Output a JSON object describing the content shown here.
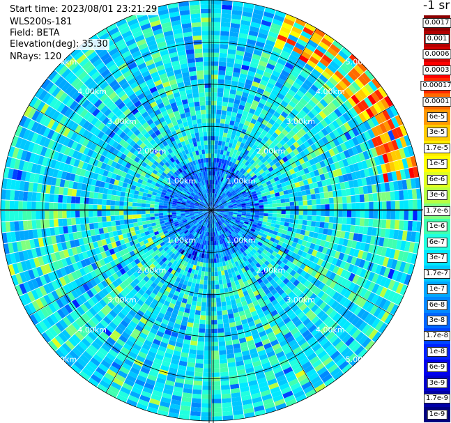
{
  "header": {
    "start_time": "Start time: 2023/08/01 23:21:29",
    "instrument": "WLS200s-181",
    "field": "Field: BETA",
    "elevation": "Elevation(deg): 35.30",
    "nrays": "NRays: 120"
  },
  "colorbar": {
    "title": "-1 sr",
    "labels": [
      "0.0017",
      "0.001",
      "0.0006",
      "0.0003",
      "0.00017",
      "0.0001",
      "6e-5",
      "3e-5",
      "1.7e-5",
      "1e-5",
      "6e-6",
      "3e-6",
      "1.7e-6",
      "1e-6",
      "6e-7",
      "3e-7",
      "1.7e-7",
      "1e-7",
      "6e-8",
      "3e-8",
      "1.7e-8",
      "1e-8",
      "6e-9",
      "3e-9",
      "1.7e-9",
      "1e-9"
    ],
    "colors": [
      "#8b0000",
      "#b20000",
      "#d40000",
      "#ff0000",
      "#ff2a00",
      "#ff6a00",
      "#ff9900",
      "#ffcc00",
      "#ffee00",
      "#ffff00",
      "#e0ff20",
      "#b8ff40",
      "#80ff80",
      "#40ffb0",
      "#20ffe0",
      "#00e8ff",
      "#00c8ff",
      "#00a8ff",
      "#0088ff",
      "#0066ff",
      "#0044ff",
      "#0022ff",
      "#0000ee",
      "#0000cc",
      "#0000a8",
      "#000080"
    ]
  },
  "chart_data": {
    "type": "heatmap",
    "projection": "polar (PPI scan)",
    "field": "BETA",
    "unit": "-1 sr",
    "n_rays": 120,
    "elevation_deg": 35.3,
    "range_rings_km": [
      1,
      2,
      3,
      4,
      5
    ],
    "ring_labels": [
      "1.00km",
      "2.00km",
      "3.00km",
      "4.00km",
      "5.00km"
    ],
    "max_range_km": 5.0,
    "color_scale": "log",
    "value_range": [
      1e-09,
      0.0017
    ],
    "dominant_value_range": [
      1e-07,
      1e-06
    ],
    "enhanced_region": {
      "azimuth_deg": [
        20,
        80
      ],
      "range_km": [
        4.2,
        5.0
      ],
      "value_range": [
        1e-05,
        0.0003
      ]
    },
    "grid": true
  }
}
